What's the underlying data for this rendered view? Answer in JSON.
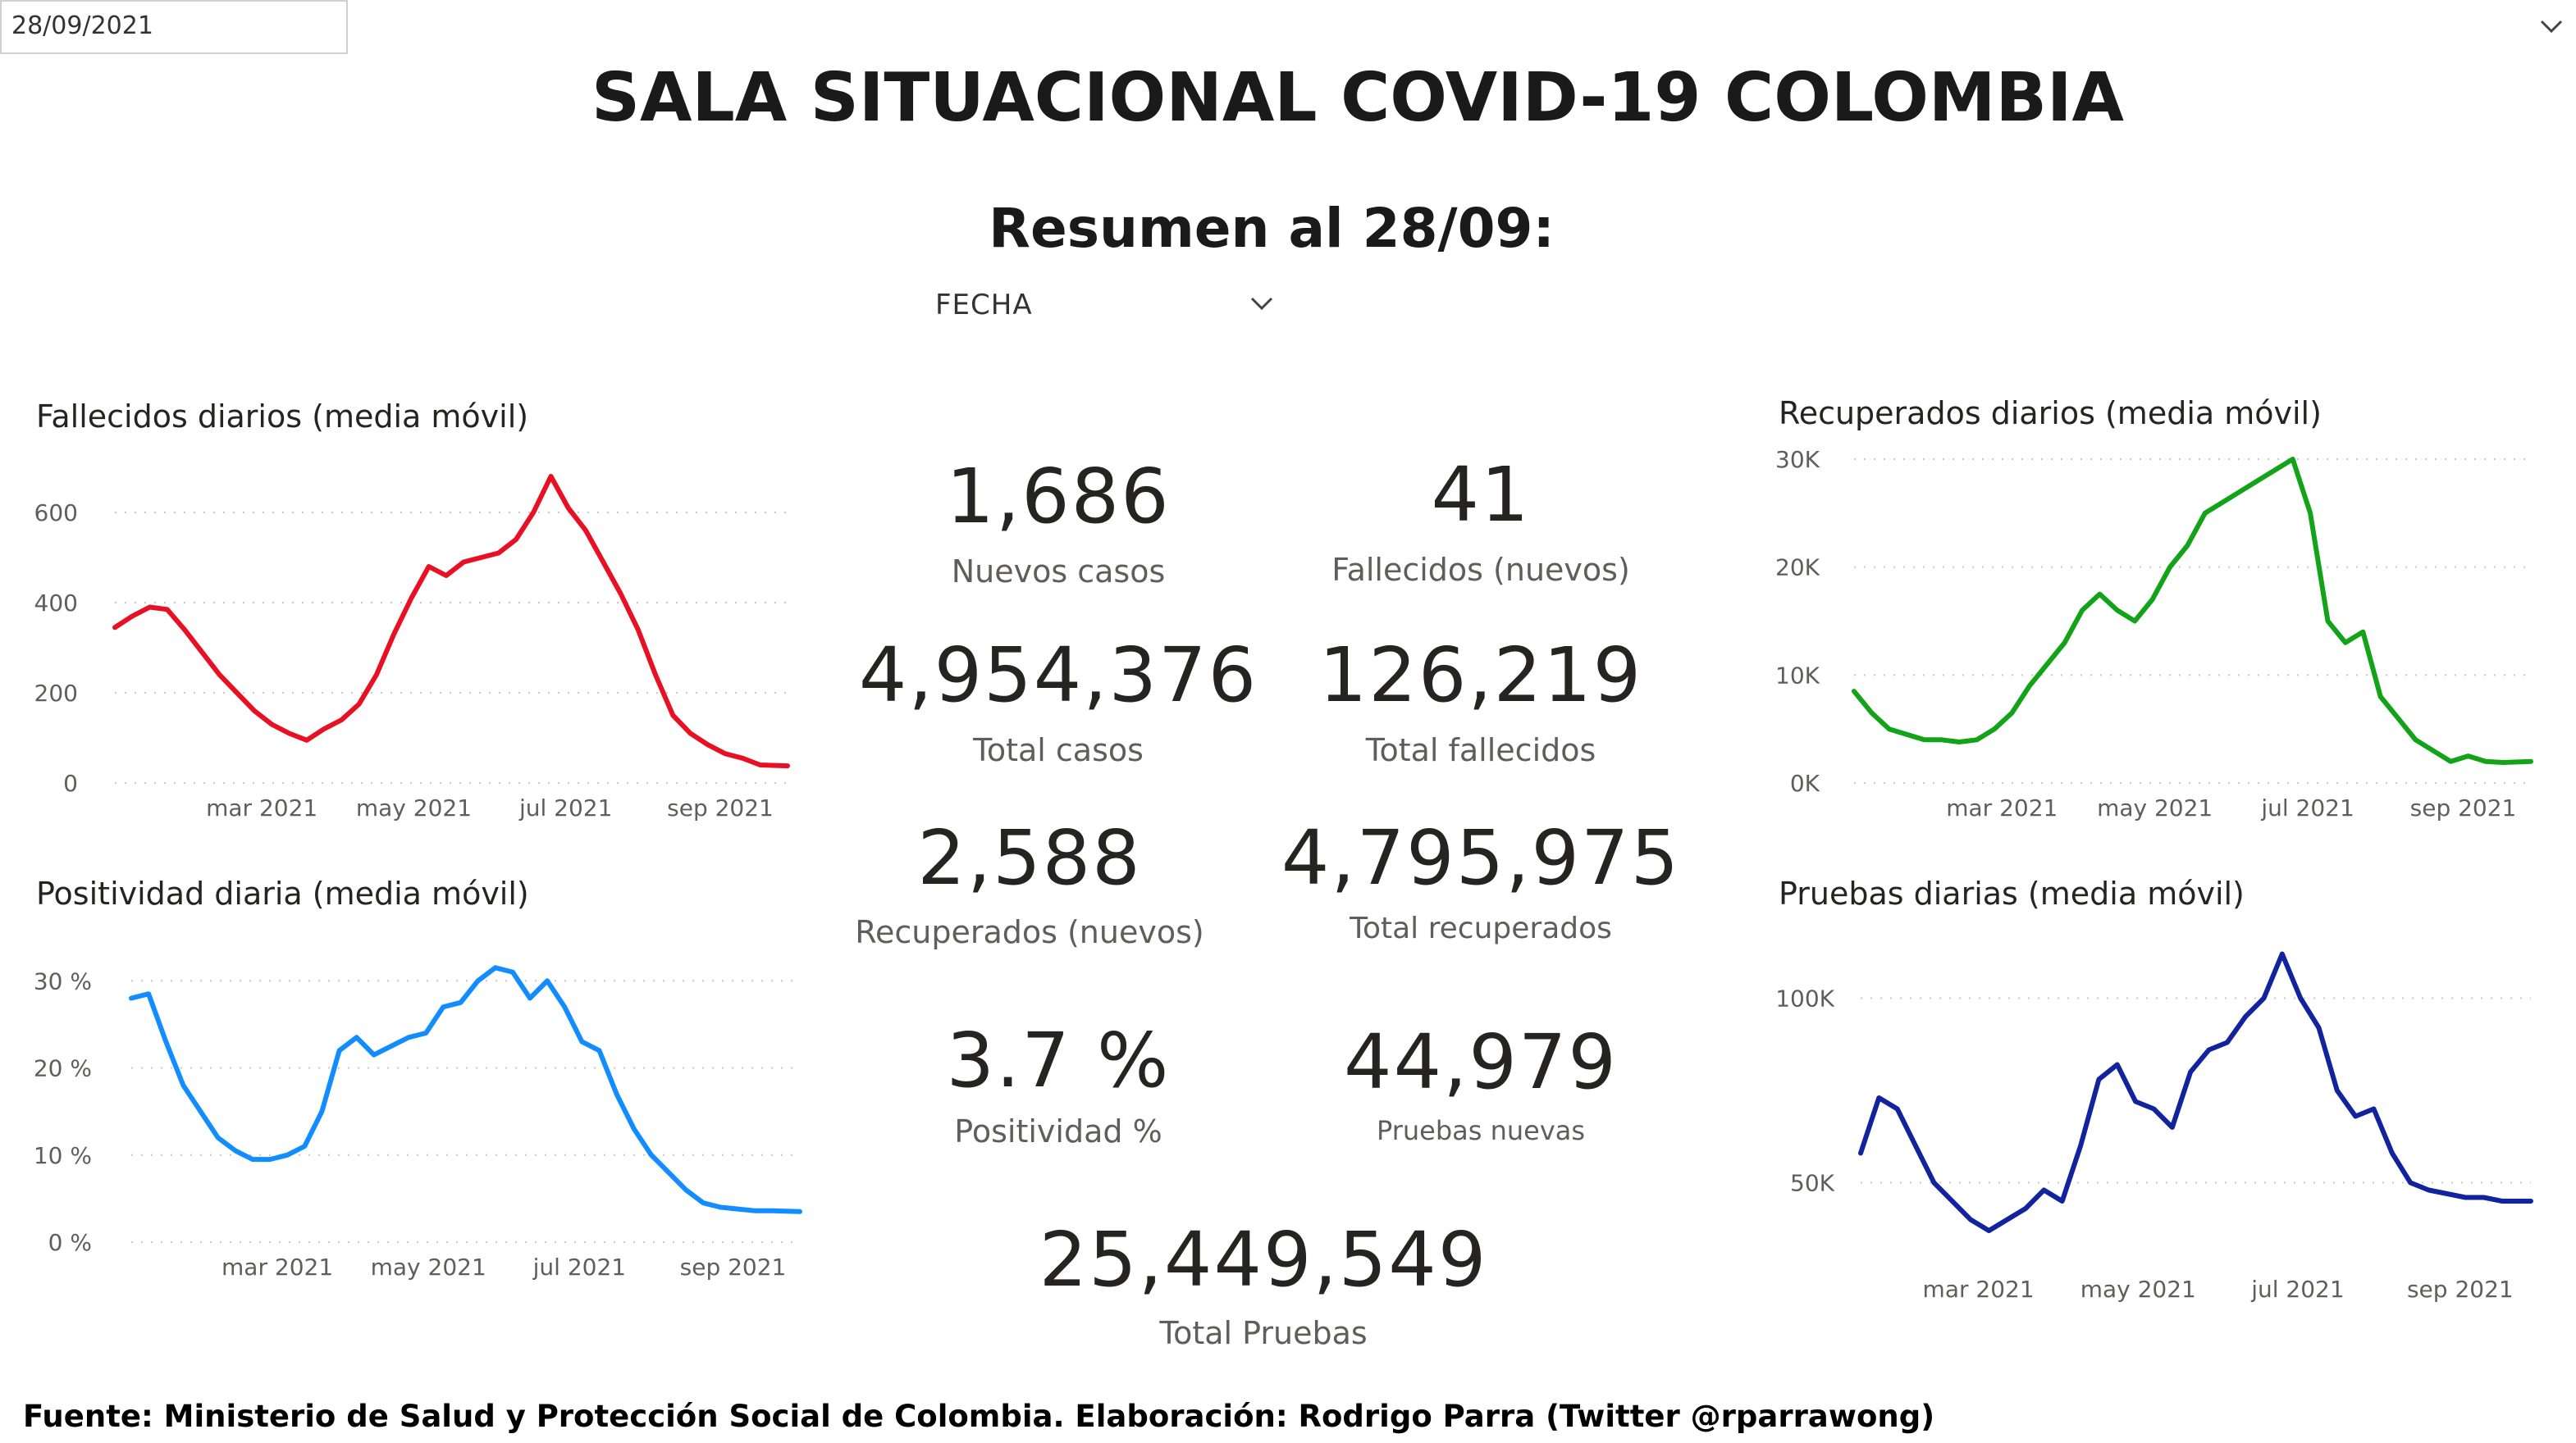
{
  "header": {
    "title": "SALA SITUACIONAL COVID-19 COLOMBIA",
    "subtitle": "Resumen al 28/09:"
  },
  "filter": {
    "label": "FECHA",
    "selected": "28/09/2021",
    "chevron_icon": "chevron-down-icon"
  },
  "kpis": {
    "nuevos_casos": {
      "value": "1,686",
      "label": "Nuevos casos"
    },
    "fallecidos_nuevos": {
      "value": "41",
      "label": "Fallecidos (nuevos)"
    },
    "total_casos": {
      "value": "4,954,376",
      "label": "Total casos"
    },
    "total_fallecidos": {
      "value": "126,219",
      "label": "Total fallecidos"
    },
    "recuperados_nuevos": {
      "value": "2,588",
      "label": "Recuperados (nuevos)"
    },
    "total_recuperados": {
      "value": "4,795,975",
      "label": "Total recuperados"
    },
    "positividad": {
      "value": "3.7 %",
      "label": "Positividad %"
    },
    "pruebas_nuevas": {
      "value": "44,979",
      "label": "Pruebas nuevas"
    },
    "total_pruebas": {
      "value": "25,449,549",
      "label": "Total Pruebas"
    }
  },
  "footer": {
    "source": "Fuente: Ministerio de Salud y Protección Social de Colombia. Elaboración: Rodrigo Parra (Twitter @rparrawong)"
  },
  "chart_data": [
    {
      "id": "fallecidos",
      "type": "line",
      "title": "Fallecidos diarios (media móvil)",
      "color": "#e81123",
      "x_range": [
        "2021-01-01",
        "2021-09-28"
      ],
      "x_ticks": [
        {
          "date": "2021-03-01",
          "label": "mar 2021"
        },
        {
          "date": "2021-05-01",
          "label": "may 2021"
        },
        {
          "date": "2021-07-01",
          "label": "jul 2021"
        },
        {
          "date": "2021-09-01",
          "label": "sep 2021"
        }
      ],
      "ylim": [
        0,
        700
      ],
      "y_ticks": [
        {
          "value": 0,
          "label": "0"
        },
        {
          "value": 200,
          "label": "200"
        },
        {
          "value": 400,
          "label": "400"
        },
        {
          "value": 600,
          "label": "600"
        }
      ],
      "grid": true,
      "x": [
        "2021-01-01",
        "2021-01-08",
        "2021-01-15",
        "2021-01-22",
        "2021-01-29",
        "2021-02-05",
        "2021-02-12",
        "2021-02-19",
        "2021-02-26",
        "2021-03-05",
        "2021-03-12",
        "2021-03-19",
        "2021-03-26",
        "2021-04-02",
        "2021-04-09",
        "2021-04-16",
        "2021-04-23",
        "2021-04-30",
        "2021-05-07",
        "2021-05-14",
        "2021-05-21",
        "2021-05-28",
        "2021-06-04",
        "2021-06-11",
        "2021-06-18",
        "2021-06-25",
        "2021-07-02",
        "2021-07-09",
        "2021-07-16",
        "2021-07-23",
        "2021-07-30",
        "2021-08-06",
        "2021-08-13",
        "2021-08-20",
        "2021-08-27",
        "2021-09-03",
        "2021-09-10",
        "2021-09-17",
        "2021-09-28"
      ],
      "values": [
        345,
        370,
        390,
        385,
        340,
        290,
        240,
        200,
        160,
        130,
        110,
        95,
        120,
        140,
        175,
        240,
        330,
        410,
        480,
        460,
        490,
        500,
        510,
        540,
        600,
        680,
        610,
        560,
        490,
        420,
        340,
        240,
        150,
        110,
        85,
        65,
        55,
        40,
        38
      ]
    },
    {
      "id": "positividad",
      "type": "line",
      "title": "Positividad diaria (media móvil)",
      "color": "#118dff",
      "x_range": [
        "2021-01-01",
        "2021-09-28"
      ],
      "x_ticks": [
        {
          "date": "2021-03-01",
          "label": "mar 2021"
        },
        {
          "date": "2021-05-01",
          "label": "may 2021"
        },
        {
          "date": "2021-07-01",
          "label": "jul 2021"
        },
        {
          "date": "2021-09-01",
          "label": "sep 2021"
        }
      ],
      "ylim": [
        0,
        32
      ],
      "y_ticks": [
        {
          "value": 0,
          "label": "0 %"
        },
        {
          "value": 10,
          "label": "10 %"
        },
        {
          "value": 20,
          "label": "20 %"
        },
        {
          "value": 30,
          "label": "30 %"
        }
      ],
      "grid": true,
      "x": [
        "2021-01-01",
        "2021-01-08",
        "2021-01-15",
        "2021-01-22",
        "2021-01-29",
        "2021-02-05",
        "2021-02-12",
        "2021-02-19",
        "2021-02-26",
        "2021-03-05",
        "2021-03-12",
        "2021-03-19",
        "2021-03-26",
        "2021-04-02",
        "2021-04-09",
        "2021-04-16",
        "2021-04-23",
        "2021-04-30",
        "2021-05-07",
        "2021-05-14",
        "2021-05-21",
        "2021-05-28",
        "2021-06-04",
        "2021-06-11",
        "2021-06-18",
        "2021-06-25",
        "2021-07-02",
        "2021-07-09",
        "2021-07-16",
        "2021-07-23",
        "2021-07-30",
        "2021-08-06",
        "2021-08-13",
        "2021-08-20",
        "2021-08-27",
        "2021-09-03",
        "2021-09-10",
        "2021-09-17",
        "2021-09-28"
      ],
      "values": [
        28,
        28.5,
        23,
        18,
        15,
        12,
        10.5,
        9.5,
        9.5,
        10,
        11,
        15,
        22,
        23.5,
        21.5,
        22.5,
        23.5,
        24,
        27,
        27.5,
        30,
        31.5,
        31,
        28,
        30,
        27,
        23,
        22,
        17,
        13,
        10,
        8,
        6,
        4.5,
        4,
        3.8,
        3.6,
        3.6,
        3.5
      ]
    },
    {
      "id": "recuperados",
      "type": "line",
      "title": "Recuperados diarios (media móvil)",
      "color": "#12a318",
      "x_range": [
        "2021-01-01",
        "2021-09-28"
      ],
      "x_ticks": [
        {
          "date": "2021-03-01",
          "label": "mar 2021"
        },
        {
          "date": "2021-05-01",
          "label": "may 2021"
        },
        {
          "date": "2021-07-01",
          "label": "jul 2021"
        },
        {
          "date": "2021-09-01",
          "label": "sep 2021"
        }
      ],
      "ylim": [
        0,
        30000
      ],
      "y_ticks": [
        {
          "value": 0,
          "label": "0K"
        },
        {
          "value": 10000,
          "label": "10K"
        },
        {
          "value": 20000,
          "label": "20K"
        },
        {
          "value": 30000,
          "label": "30K"
        }
      ],
      "grid": true,
      "x": [
        "2021-01-01",
        "2021-01-08",
        "2021-01-15",
        "2021-01-22",
        "2021-01-29",
        "2021-02-05",
        "2021-02-12",
        "2021-02-19",
        "2021-02-26",
        "2021-03-05",
        "2021-03-12",
        "2021-03-19",
        "2021-03-26",
        "2021-04-02",
        "2021-04-09",
        "2021-04-16",
        "2021-04-23",
        "2021-04-30",
        "2021-05-07",
        "2021-05-14",
        "2021-05-21",
        "2021-05-28",
        "2021-06-04",
        "2021-06-11",
        "2021-06-18",
        "2021-06-25",
        "2021-07-02",
        "2021-07-09",
        "2021-07-16",
        "2021-07-23",
        "2021-07-30",
        "2021-08-06",
        "2021-08-13",
        "2021-08-20",
        "2021-08-27",
        "2021-09-03",
        "2021-09-10",
        "2021-09-17",
        "2021-09-28"
      ],
      "values": [
        8500,
        6500,
        5000,
        4500,
        4000,
        4000,
        3800,
        4000,
        5000,
        6500,
        9000,
        11000,
        13000,
        16000,
        17500,
        16000,
        15000,
        17000,
        20000,
        22000,
        25000,
        26000,
        27000,
        28000,
        29000,
        30000,
        25000,
        15000,
        13000,
        14000,
        8000,
        6000,
        4000,
        3000,
        2000,
        2500,
        2000,
        1900,
        2000
      ]
    },
    {
      "id": "pruebas",
      "type": "line",
      "title": "Pruebas diarias (media móvil)",
      "color": "#12239e",
      "x_range": [
        "2021-01-15",
        "2021-09-28"
      ],
      "x_ticks": [
        {
          "date": "2021-03-01",
          "label": "mar 2021"
        },
        {
          "date": "2021-05-01",
          "label": "may 2021"
        },
        {
          "date": "2021-07-01",
          "label": "jul 2021"
        },
        {
          "date": "2021-09-01",
          "label": "sep 2021"
        }
      ],
      "ylim": [
        25000,
        115000
      ],
      "y_ticks": [
        {
          "value": 50000,
          "label": "50K"
        },
        {
          "value": 100000,
          "label": "100K"
        }
      ],
      "grid": true,
      "x": [
        "2021-01-15",
        "2021-01-22",
        "2021-01-29",
        "2021-02-05",
        "2021-02-12",
        "2021-02-19",
        "2021-02-26",
        "2021-03-05",
        "2021-03-12",
        "2021-03-19",
        "2021-03-26",
        "2021-04-02",
        "2021-04-09",
        "2021-04-16",
        "2021-04-23",
        "2021-04-30",
        "2021-05-07",
        "2021-05-14",
        "2021-05-21",
        "2021-05-28",
        "2021-06-04",
        "2021-06-11",
        "2021-06-18",
        "2021-06-25",
        "2021-07-02",
        "2021-07-09",
        "2021-07-16",
        "2021-07-23",
        "2021-07-30",
        "2021-08-06",
        "2021-08-13",
        "2021-08-20",
        "2021-08-27",
        "2021-09-03",
        "2021-09-10",
        "2021-09-17",
        "2021-09-28"
      ],
      "values": [
        58000,
        73000,
        70000,
        60000,
        50000,
        45000,
        40000,
        37000,
        40000,
        43000,
        48000,
        45000,
        60000,
        78000,
        82000,
        72000,
        70000,
        65000,
        80000,
        86000,
        88000,
        95000,
        100000,
        112000,
        100000,
        92000,
        75000,
        68000,
        70000,
        58000,
        50000,
        48000,
        47000,
        46000,
        46000,
        45000,
        45000
      ]
    }
  ]
}
